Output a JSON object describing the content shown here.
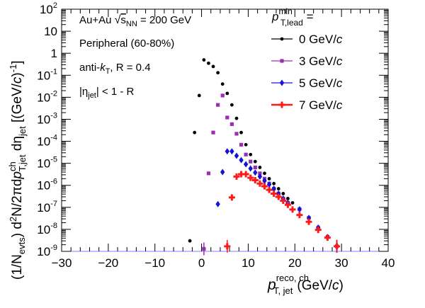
{
  "chart_data": {
    "type": "scatter",
    "xlabel": "p_T,jet^reco, ch (GeV/c)",
    "ylabel": "(1/N_evts) d²N/2πdp_T,jet^ch dη_jet [(GeV/c)⁻¹]",
    "xlim": [
      -30,
      40
    ],
    "ylim": [
      1e-09,
      100
    ],
    "yscale": "log",
    "grid": false,
    "legend_position": "top-right",
    "legend_title": "p_T,lead^min =",
    "x_ticks": [
      "−30",
      "−20",
      "−10",
      "0",
      "10",
      "20",
      "30",
      "40"
    ],
    "annotations": [
      "Au+Au √s_NN = 200 GeV",
      "Peripheral (60-80%)",
      "anti-k_T, R = 0.4",
      "|η_jet| < 1 - R"
    ],
    "series": [
      {
        "name": "0 GeV/c",
        "color": "#000000",
        "marker": "circle",
        "points": [
          [
            -2.5,
            3e-09
          ],
          [
            -1.5,
            0.00025
          ],
          [
            -0.5,
            0.012
          ],
          [
            0.5,
            0.5
          ],
          [
            1.5,
            0.35
          ],
          [
            2.5,
            0.25
          ],
          [
            3.5,
            0.13
          ],
          [
            4.5,
            0.04
          ],
          [
            5.5,
            0.015
          ],
          [
            6.5,
            0.0045
          ],
          [
            7.5,
            0.0011
          ],
          [
            8.5,
            0.00025
          ],
          [
            9.5,
            7e-05
          ],
          [
            10.5,
            2.5e-05
          ],
          [
            11.5,
            1.2e-05
          ],
          [
            12.5,
            6.5e-06
          ],
          [
            13.5,
            3.5e-06
          ],
          [
            14.5,
            2e-06
          ],
          [
            15.5,
            1.2e-06
          ],
          [
            16.5,
            7e-07
          ],
          [
            17.5,
            4.2e-07
          ],
          [
            18.5,
            2.5e-07
          ],
          [
            19.5,
            1.6e-07
          ],
          [
            21,
            8.2e-08
          ],
          [
            23,
            3.3e-08
          ],
          [
            25,
            1.2e-08
          ],
          [
            27,
            4.5e-09
          ],
          [
            29,
            1.7e-09
          ]
        ]
      },
      {
        "name": "3 GeV/c",
        "color": "#9a2eb0",
        "marker": "square",
        "points": [
          [
            0.5,
            1.3e-09
          ],
          [
            1.5,
            3.5e-06
          ],
          [
            2.5,
            0.00025
          ],
          [
            3.5,
            0.0045
          ],
          [
            4.5,
            0.012
          ],
          [
            5.5,
            0.0012
          ],
          [
            6.5,
            0.0006
          ],
          [
            7.5,
            0.00022
          ],
          [
            8.5,
            7e-05
          ],
          [
            9.5,
            2.5e-05
          ],
          [
            10.5,
            1.2e-05
          ],
          [
            11.5,
            6.5e-06
          ],
          [
            12.5,
            3.5e-06
          ],
          [
            13.5,
            2e-06
          ],
          [
            14.5,
            1.2e-06
          ],
          [
            15.5,
            7e-07
          ],
          [
            16.5,
            4.2e-07
          ],
          [
            17.5,
            2.5e-07
          ],
          [
            18.5,
            1.6e-07
          ],
          [
            21,
            8.2e-08
          ],
          [
            23,
            3.3e-08
          ],
          [
            25,
            1.2e-08
          ],
          [
            27,
            4.5e-09
          ],
          [
            29,
            1.7e-09
          ]
        ]
      },
      {
        "name": "5 GeV/c",
        "color": "#1414d6",
        "marker": "diamond",
        "points": [
          [
            3.5,
            1.4e-07
          ],
          [
            4.5,
            4e-06
          ],
          [
            5.5,
            3.5e-05
          ],
          [
            6.5,
            3.5e-05
          ],
          [
            7.5,
            2.2e-05
          ],
          [
            8.5,
            1.4e-05
          ],
          [
            9.5,
            9e-06
          ],
          [
            10.5,
            5.8e-06
          ],
          [
            11.5,
            3.8e-06
          ],
          [
            12.5,
            2.5e-06
          ],
          [
            13.5,
            1.6e-06
          ],
          [
            14.5,
            1.1e-06
          ],
          [
            15.5,
            7e-07
          ],
          [
            16.5,
            4.2e-07
          ],
          [
            17.5,
            2.5e-07
          ],
          [
            18.5,
            1.6e-07
          ],
          [
            21,
            8.2e-08
          ],
          [
            23,
            3.3e-08
          ],
          [
            25,
            1.2e-08
          ],
          [
            27,
            4.5e-09
          ],
          [
            29,
            1.7e-09
          ]
        ]
      },
      {
        "name": "7 GeV/c",
        "color": "#ff1a1a",
        "marker": "cross",
        "points": [
          [
            5.5,
            1.7e-09
          ],
          [
            6.5,
            2.8e-07
          ],
          [
            7.5,
            2.5e-06
          ],
          [
            8.5,
            3.2e-06
          ],
          [
            9.5,
            3.2e-06
          ],
          [
            10.5,
            2.2e-06
          ],
          [
            11.5,
            1.7e-06
          ],
          [
            12.5,
            1.2e-06
          ],
          [
            13.5,
            9e-07
          ],
          [
            14.5,
            6.2e-07
          ],
          [
            15.5,
            4.2e-07
          ],
          [
            16.5,
            3e-07
          ],
          [
            17.5,
            2e-07
          ],
          [
            18.5,
            1.3e-07
          ],
          [
            19.5,
            8e-08
          ],
          [
            21,
            4.5e-08
          ],
          [
            23,
            2.2e-08
          ],
          [
            25,
            9.5e-09
          ],
          [
            27,
            4.2e-09
          ],
          [
            29,
            1.7e-09
          ]
        ]
      }
    ]
  }
}
